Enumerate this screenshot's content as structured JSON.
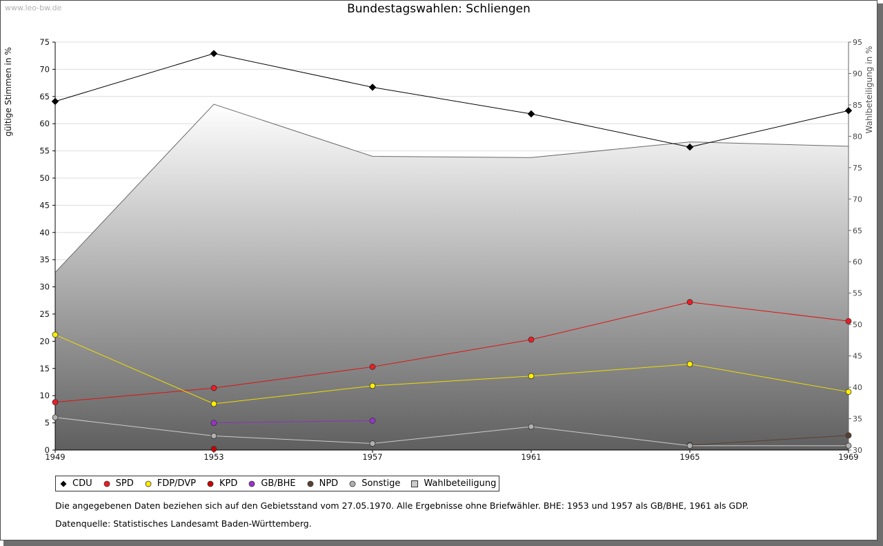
{
  "watermark": "www.leo-bw.de",
  "chart_data": {
    "type": "line",
    "title": "Bundestagswahlen: Schliengen",
    "ylabel": "gültige Stimmen in %",
    "y2label": "Wahlbeteiligung in %",
    "ylim": [
      0,
      75
    ],
    "y2lim": [
      30,
      95
    ],
    "yticks": [
      0,
      5,
      10,
      15,
      20,
      25,
      30,
      35,
      40,
      45,
      50,
      55,
      60,
      65,
      70,
      75
    ],
    "y2ticks": [
      30,
      35,
      40,
      45,
      50,
      55,
      60,
      65,
      70,
      75,
      80,
      85,
      90,
      95
    ],
    "categories": [
      "1949",
      "1953",
      "1957",
      "1961",
      "1965",
      "1969"
    ],
    "series": [
      {
        "name": "CDU",
        "color": "#000000",
        "line": "#000000",
        "values": [
          64.1,
          72.9,
          66.7,
          61.8,
          55.7,
          62.4
        ]
      },
      {
        "name": "SPD",
        "color": "#ee1c25",
        "line": "#dd1111",
        "values": [
          8.8,
          11.4,
          15.3,
          20.3,
          27.2,
          23.7
        ]
      },
      {
        "name": "FDP/DVP",
        "color": "#ffee00",
        "line": "#eedd00",
        "values": [
          21.2,
          8.5,
          11.8,
          13.6,
          15.8,
          10.7
        ]
      },
      {
        "name": "KPD",
        "color": "#cc0000",
        "line": "#cc0000",
        "values": [
          null,
          0.2,
          null,
          null,
          null,
          null
        ]
      },
      {
        "name": "GB/BHE",
        "color": "#9933cc",
        "line": "#8833bb",
        "values": [
          null,
          5.0,
          5.4,
          null,
          null,
          null
        ]
      },
      {
        "name": "NPD",
        "color": "#5a4030",
        "line": "#5a4030",
        "values": [
          null,
          null,
          null,
          null,
          0.9,
          2.7
        ]
      },
      {
        "name": "Sonstige",
        "color": "#b0b0b0",
        "line": "#cccccc",
        "values": [
          6.0,
          2.6,
          1.2,
          4.3,
          0.8,
          0.8
        ]
      }
    ],
    "turnout": {
      "name": "Wahlbeteiligung",
      "axis": "right",
      "values": [
        58.3,
        85.1,
        76.8,
        76.6,
        79.1,
        78.4
      ]
    }
  },
  "note": "Die angegebenen Daten beziehen sich auf den Gebietsstand vom 27.05.1970. Alle Ergebnisse ohne Briefwähler. BHE: 1953 und 1957 als GB/BHE, 1961 als GDP.",
  "source": "Datenquelle: Statistisches Landesamt Baden-Württemberg."
}
